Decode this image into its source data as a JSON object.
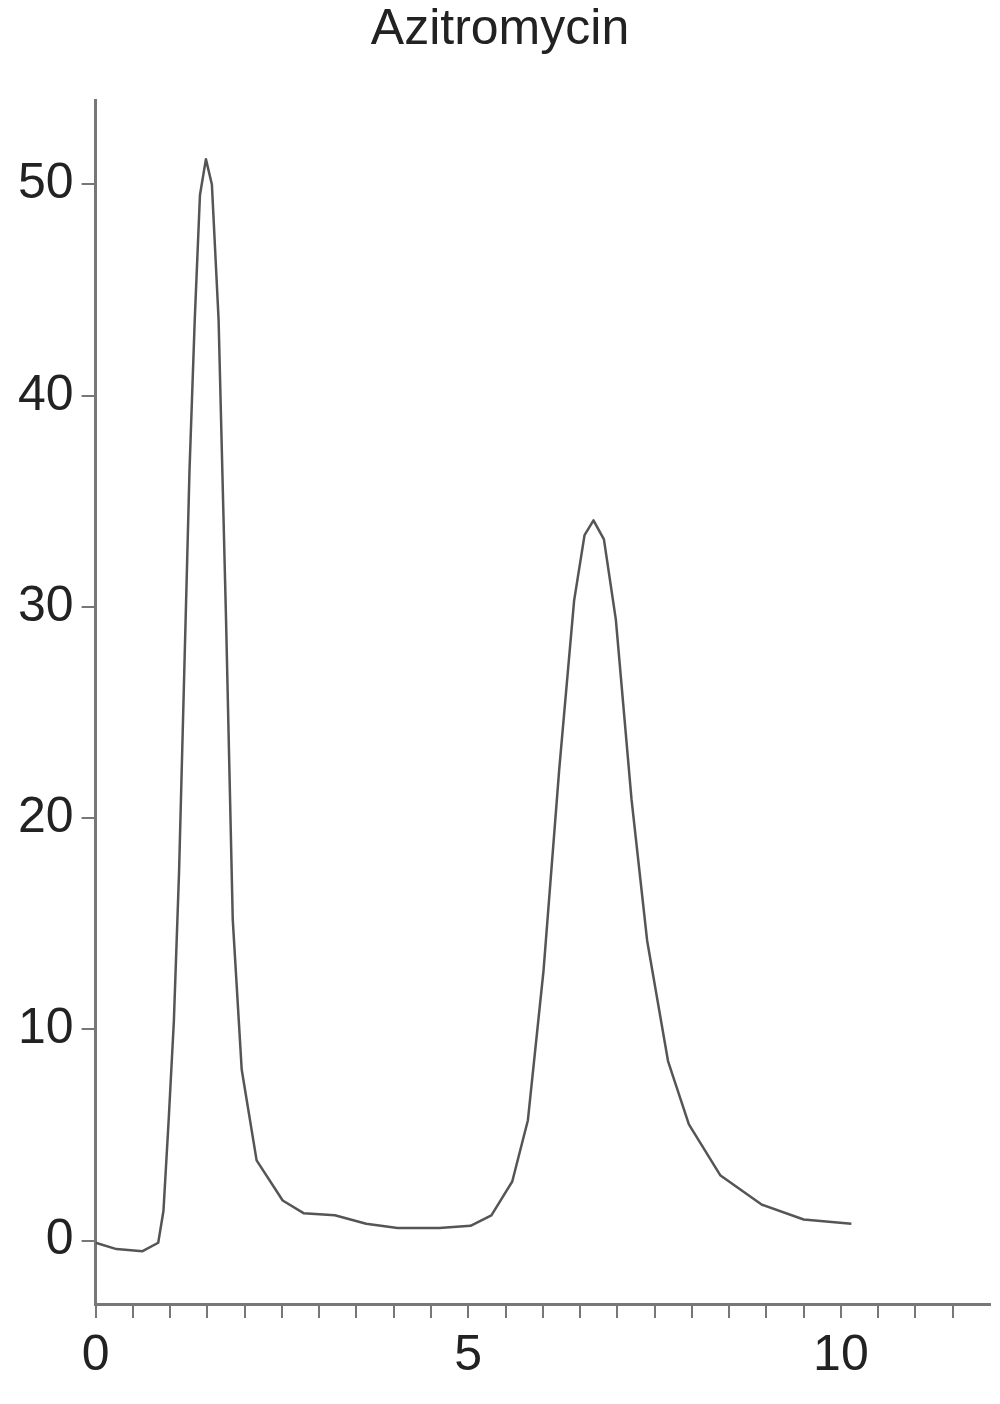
{
  "chart_data": {
    "type": "line",
    "title": "Azitromycin",
    "xlim": [
      0,
      12
    ],
    "ylim": [
      -3,
      54
    ],
    "xticks": [
      0,
      {
        "value": 0.5,
        "label": null
      },
      {
        "value": 1,
        "label": null
      },
      {
        "value": 1.5,
        "label": null
      },
      {
        "value": 2,
        "label": null
      },
      {
        "value": 2.5,
        "label": null
      },
      {
        "value": 3,
        "label": null
      },
      {
        "value": 3.5,
        "label": null
      },
      {
        "value": 4,
        "label": null
      },
      {
        "value": 4.5,
        "label": null
      },
      5,
      {
        "value": 5.5,
        "label": null
      },
      {
        "value": 6,
        "label": null
      },
      {
        "value": 6.5,
        "label": null
      },
      {
        "value": 7,
        "label": null
      },
      {
        "value": 7.5,
        "label": null
      },
      {
        "value": 8,
        "label": null
      },
      {
        "value": 8.5,
        "label": null
      },
      {
        "value": 9,
        "label": null
      },
      {
        "value": 9.5,
        "label": null
      },
      10,
      {
        "value": 10.5,
        "label": null
      },
      {
        "value": 11,
        "label": null
      },
      {
        "value": 11.5,
        "label": null
      }
    ],
    "yticks": [
      0,
      10,
      20,
      30,
      40,
      50
    ],
    "grid": false,
    "marker": "none",
    "line_style": "solid",
    "series": [
      {
        "color": "#555555",
        "x": [
          0,
          0.28,
          0.63,
          0.84,
          0.91,
          0.98,
          1.05,
          1.12,
          1.19,
          1.26,
          1.33,
          1.4,
          1.48,
          1.56,
          1.65,
          1.75,
          1.84,
          1.96,
          2.16,
          2.51,
          2.79,
          3.21,
          3.63,
          4.05,
          4.61,
          5.03,
          5.31,
          5.59,
          5.8,
          6.01,
          6.22,
          6.42,
          6.56,
          6.68,
          6.82,
          6.98,
          7.19,
          7.4,
          7.68,
          7.96,
          8.38,
          8.94,
          9.5,
          10.14
        ],
        "values": [
          -0.1,
          -0.4,
          -0.5,
          -0.1,
          1.4,
          5.7,
          10.4,
          17.5,
          27,
          36.5,
          43.6,
          49.5,
          51.2,
          50,
          43.6,
          29.4,
          15.2,
          8.1,
          3.8,
          1.9,
          1.3,
          1.2,
          0.8,
          0.6,
          0.6,
          0.7,
          1.2,
          2.8,
          5.7,
          12.8,
          22.3,
          30.3,
          33.4,
          34.1,
          33.2,
          29.4,
          20.9,
          14.2,
          8.5,
          5.5,
          3.1,
          1.7,
          1,
          0.8
        ]
      }
    ]
  }
}
